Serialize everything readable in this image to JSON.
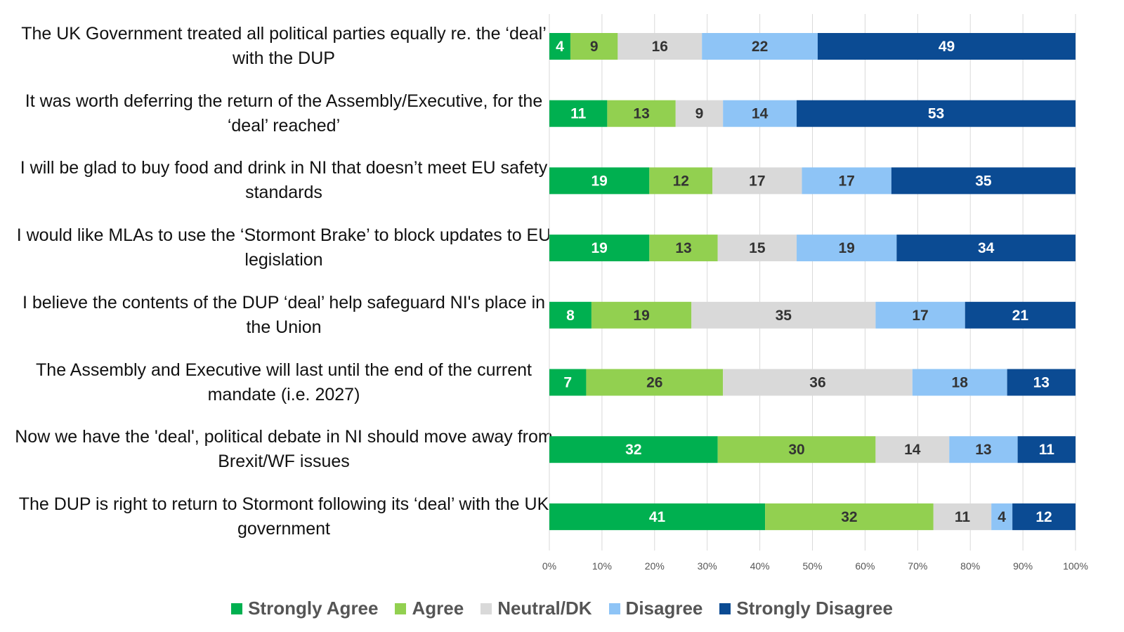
{
  "chart_data": {
    "type": "bar",
    "orientation": "horizontal",
    "stacked": true,
    "title": "",
    "xlabel": "",
    "ylabel": "",
    "xlim": [
      0,
      100
    ],
    "grid": true,
    "legend_position": "bottom",
    "tick_labels": [
      "0%",
      "10%",
      "20%",
      "30%",
      "40%",
      "50%",
      "60%",
      "70%",
      "80%",
      "90%",
      "100%"
    ],
    "categories": [
      "The UK Government treated all political parties equally re. the ‘deal’ with the DUP",
      "It was worth deferring the return of the Assembly/Executive, for the ‘deal’ reached’",
      "I will be glad to buy food and drink in NI that doesn’t meet EU safety standards",
      "I would like MLAs to use the ‘Stormont Brake’ to block updates to EU legislation",
      "I believe the contents of the DUP ‘deal’ help safeguard NI's place in the Union",
      "The Assembly and Executive will last until the end of the current mandate (i.e. 2027)",
      "Now we have the 'deal', political debate in NI should move away from Brexit/WF issues",
      "The DUP is right to return to Stormont following its ‘deal’ with the UK government"
    ],
    "series": [
      {
        "name": "Strongly Agree",
        "color": "#00B050",
        "label_color": "#ffffff",
        "values": [
          4,
          11,
          19,
          19,
          8,
          7,
          32,
          41
        ]
      },
      {
        "name": "Agree",
        "color": "#92D050",
        "label_color": "#333333",
        "values": [
          9,
          13,
          12,
          13,
          19,
          26,
          30,
          32
        ]
      },
      {
        "name": "Neutral/DK",
        "color": "#D9D9D9",
        "label_color": "#333333",
        "values": [
          16,
          9,
          17,
          15,
          35,
          36,
          14,
          11
        ]
      },
      {
        "name": "Disagree",
        "color": "#8EC4F6",
        "label_color": "#333333",
        "values": [
          22,
          14,
          17,
          19,
          17,
          18,
          13,
          4
        ]
      },
      {
        "name": "Strongly Disagree",
        "color": "#0B4B93",
        "label_color": "#ffffff",
        "values": [
          49,
          53,
          35,
          34,
          21,
          13,
          11,
          12
        ]
      }
    ]
  }
}
